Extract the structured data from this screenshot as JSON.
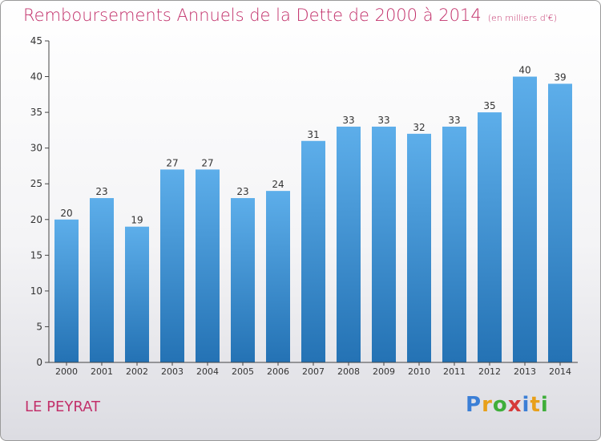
{
  "header": {
    "title": "Remboursements Annuels de la Dette de 2000 à 2014",
    "unit": "(en milliers d'€)"
  },
  "footer": {
    "commune": "LE PEYRAT",
    "logo_letters": [
      "P",
      "r",
      "o",
      "x",
      "i",
      "t",
      "i"
    ],
    "logo_colors": [
      "#3b7fd6",
      "#e8a01a",
      "#3fae3a",
      "#d63a3a",
      "#3b7fd6",
      "#e8a01a",
      "#3fae3a"
    ]
  },
  "colors": {
    "title": "#c2306a",
    "bar_top": "#5daeea",
    "bar_bottom": "#2472b4",
    "axis": "#444444"
  },
  "chart_data": {
    "type": "bar",
    "title": "Remboursements Annuels de la Dette de 2000 à 2014",
    "xlabel": "",
    "ylabel": "",
    "categories": [
      "2000",
      "2001",
      "2002",
      "2003",
      "2004",
      "2005",
      "2006",
      "2007",
      "2008",
      "2009",
      "2010",
      "2011",
      "2012",
      "2013",
      "2014"
    ],
    "values": [
      20,
      23,
      19,
      27,
      27,
      23,
      24,
      31,
      33,
      33,
      32,
      33,
      35,
      40,
      39
    ],
    "yticks": [
      0,
      5,
      10,
      15,
      20,
      25,
      30,
      35,
      40,
      45
    ],
    "ylim": [
      0,
      45
    ],
    "grid": false,
    "data_labels": true
  }
}
